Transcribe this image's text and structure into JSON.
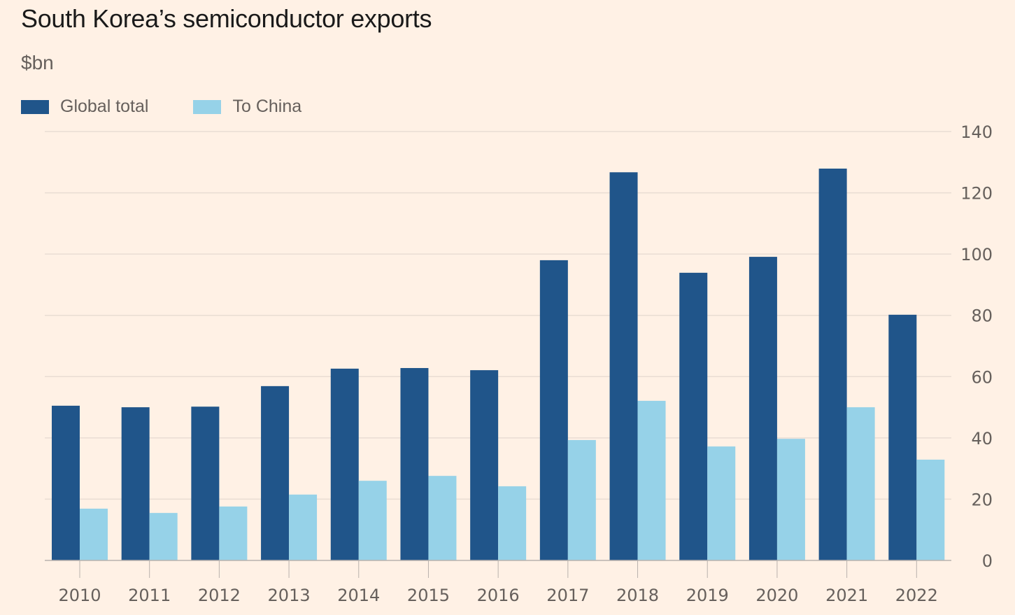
{
  "chart_data": {
    "type": "bar",
    "title": "South Korea’s semiconductor exports",
    "subtitle": "$bn",
    "xlabel": "",
    "ylabel": "$bn",
    "ylim": [
      0,
      140
    ],
    "yticks": [
      0,
      20,
      40,
      60,
      80,
      100,
      120,
      140
    ],
    "ytick_labels": [
      "0",
      "20",
      "40",
      "60",
      "80",
      "100",
      "120",
      "140"
    ],
    "y_axis_position": "right",
    "grid": true,
    "legend_position": "top-left",
    "categories": [
      "2010",
      "2011",
      "2012",
      "2013",
      "2014",
      "2015",
      "2016",
      "2017",
      "2018",
      "2019",
      "2020",
      "2021",
      "2022"
    ],
    "series": [
      {
        "name": "Global total",
        "color": "#20558a",
        "values": [
          50.5,
          50.0,
          50.2,
          56.9,
          62.6,
          62.8,
          62.1,
          98.0,
          126.7,
          93.9,
          99.1,
          127.9,
          80.2
        ]
      },
      {
        "name": "To China",
        "color": "#96d2e8",
        "values": [
          16.9,
          15.5,
          17.6,
          21.5,
          26.0,
          27.6,
          24.2,
          39.3,
          52.1,
          37.2,
          39.7,
          50.0,
          32.9
        ]
      }
    ]
  },
  "colors": {
    "background": "#fff1e5",
    "gridline": "#e9ddd3",
    "axis": "#b9b2ad",
    "text": "#66605c"
  }
}
